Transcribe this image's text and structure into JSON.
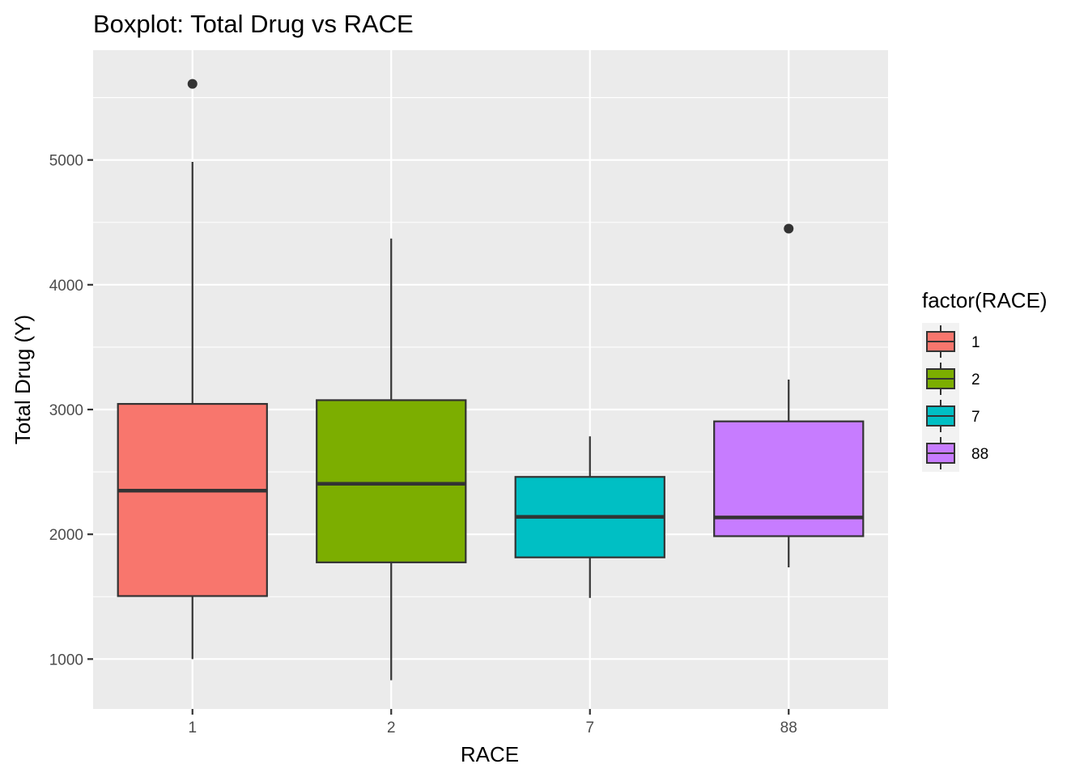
{
  "chart_data": {
    "type": "boxplot",
    "title": "Boxplot: Total Drug vs RACE",
    "xlabel": "RACE",
    "ylabel": "Total Drug (Y)",
    "categories": [
      "1",
      "2",
      "7",
      "88"
    ],
    "ylim": [
      600,
      5880
    ],
    "y_ticks": [
      1000,
      2000,
      3000,
      4000,
      5000
    ],
    "y_tick_labels": [
      "1000",
      "2000",
      "3000",
      "4000",
      "5000"
    ],
    "grid": true,
    "legend": {
      "title": "factor(RACE)",
      "placement": "right",
      "entries": [
        "1",
        "2",
        "7",
        "88"
      ]
    },
    "series": [
      {
        "category": "1",
        "whisker_low": 1000,
        "q1": 1505,
        "median": 2350,
        "q3": 3045,
        "whisker_high": 4985,
        "outliers": [
          5610
        ],
        "color": "#F8766D"
      },
      {
        "category": "2",
        "whisker_low": 830,
        "q1": 1775,
        "median": 2405,
        "q3": 3075,
        "whisker_high": 4370,
        "outliers": [],
        "color": "#7CAE00"
      },
      {
        "category": "7",
        "whisker_low": 1490,
        "q1": 1815,
        "median": 2140,
        "q3": 2460,
        "whisker_high": 2785,
        "outliers": [],
        "color": "#00BFC4"
      },
      {
        "category": "88",
        "whisker_low": 1735,
        "q1": 1985,
        "median": 2135,
        "q3": 2905,
        "whisker_high": 3240,
        "outliers": [
          4450
        ],
        "color": "#C77CFF"
      }
    ]
  },
  "colors": {
    "panel_background": "#EBEBEB",
    "grid_line": "#FFFFFF",
    "box_outline": "#333333",
    "median_line": "#333333",
    "whisker": "#333333",
    "outlier": "#333333",
    "tick_label": "#4d4d4d"
  }
}
